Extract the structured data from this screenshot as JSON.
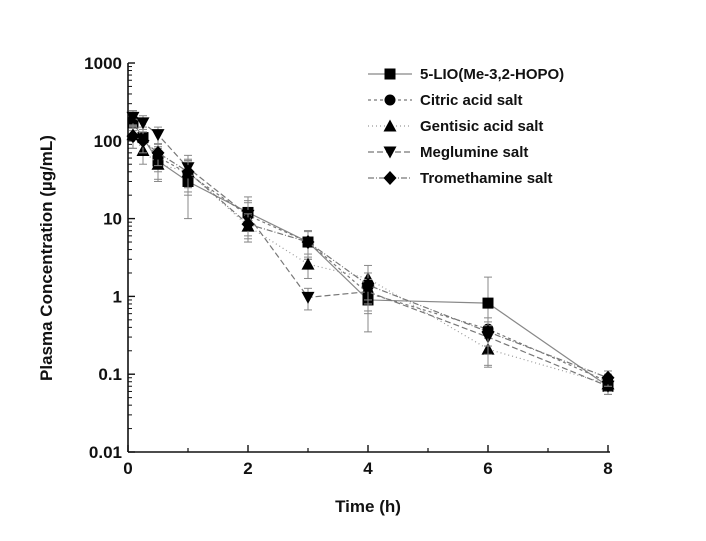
{
  "chart_data": {
    "type": "line",
    "xlabel": "Time (h)",
    "ylabel": "Plasma Concentration (µg/mL)",
    "xlim": [
      0,
      8
    ],
    "ylim": [
      0.01,
      1000
    ],
    "yscale": "log",
    "x_ticks": [
      0,
      2,
      4,
      6,
      8
    ],
    "y_ticks": [
      0.01,
      0.1,
      1,
      10,
      100,
      1000
    ],
    "x_tick_labels": [
      "0",
      "2",
      "4",
      "6",
      "8"
    ],
    "y_tick_labels": [
      "0.01",
      "0.1",
      "1",
      "10",
      "100",
      "1000"
    ],
    "legend_position": "top-right",
    "grid": false,
    "series": [
      {
        "name": "5-LIO(Me-3,2-HOPO)",
        "marker": "square",
        "dash": "",
        "color": "#888888",
        "x": [
          0.083,
          0.25,
          0.5,
          1,
          2,
          3,
          4,
          6,
          8
        ],
        "y": [
          170,
          110,
          55,
          30,
          12,
          5,
          0.9,
          0.82,
          0.07
        ],
        "err": [
          55,
          40,
          25,
          20,
          7,
          2,
          0.55,
          0.95,
          0.015
        ]
      },
      {
        "name": "Citric acid salt",
        "marker": "circle",
        "dash": "3,3",
        "color": "#777777",
        "x": [
          0.083,
          0.25,
          0.5,
          1,
          2,
          3,
          4,
          6,
          8
        ],
        "y": [
          185,
          105,
          62,
          38,
          11,
          5,
          1.1,
          0.38,
          0.08
        ],
        "err": [
          50,
          35,
          22,
          18,
          6,
          2,
          0.5,
          0.15,
          0.02
        ]
      },
      {
        "name": "Gentisic acid salt",
        "marker": "triangle-up",
        "dash": "1,3",
        "color": "#999999",
        "x": [
          0.083,
          0.25,
          0.5,
          1,
          2,
          3,
          4,
          6,
          8
        ],
        "y": [
          120,
          75,
          50,
          40,
          8,
          2.6,
          1.7,
          0.21,
          0.075
        ],
        "err": [
          40,
          25,
          18,
          15,
          3,
          0.9,
          0.8,
          0.08,
          0.015
        ]
      },
      {
        "name": "Meglumine salt",
        "marker": "triangle-down",
        "dash": "6,3",
        "color": "#777777",
        "x": [
          0.083,
          0.25,
          0.5,
          1,
          2,
          3,
          4,
          6,
          8
        ],
        "y": [
          200,
          170,
          120,
          45,
          11,
          0.97,
          1.15,
          0.3,
          0.07
        ],
        "err": [
          45,
          40,
          30,
          20,
          5,
          0.3,
          0.5,
          0.12,
          0.015
        ]
      },
      {
        "name": "Tromethamine salt",
        "marker": "diamond",
        "dash": "6,2,1,2",
        "color": "#777777",
        "x": [
          0.083,
          0.25,
          0.5,
          1,
          2,
          3,
          4,
          6,
          8
        ],
        "y": [
          115,
          100,
          70,
          40,
          8.5,
          5,
          1.4,
          0.35,
          0.09
        ],
        "err": [
          35,
          30,
          22,
          18,
          3,
          1.8,
          0.6,
          0.12,
          0.02
        ]
      }
    ]
  }
}
